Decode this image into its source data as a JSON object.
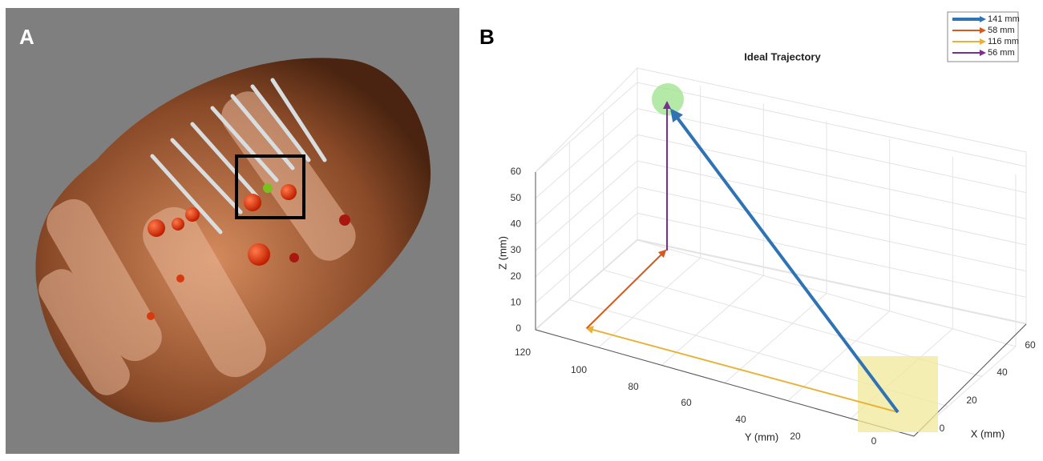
{
  "panels": [
    {
      "label": "A"
    },
    {
      "label": "B",
      "title": "Ideal Trajectory",
      "legend": [
        "141 mm",
        "58 mm",
        "116 mm",
        "56 mm"
      ],
      "axes": {
        "z_label": "Z (mm)",
        "y_label": "Y (mm)",
        "x_label": "X (mm)",
        "z_ticks": [
          "0",
          "10",
          "20",
          "30",
          "40",
          "50",
          "60"
        ],
        "y_ticks": [
          "120",
          "100",
          "80",
          "60",
          "40",
          "20",
          "0"
        ],
        "x_ticks": [
          "0",
          "20",
          "40",
          "60"
        ]
      }
    }
  ]
}
